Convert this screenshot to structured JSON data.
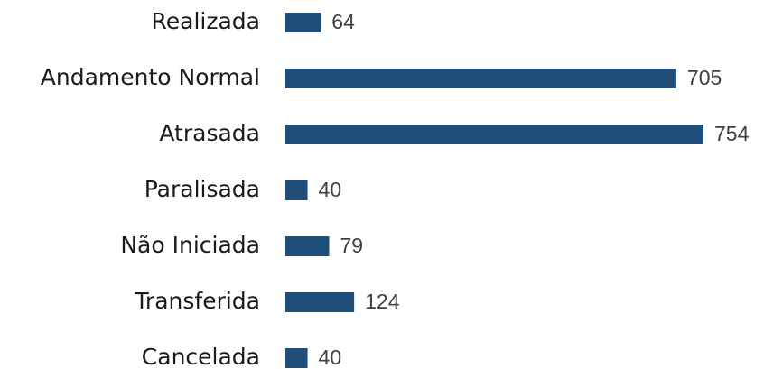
{
  "chart_data": {
    "type": "bar",
    "orientation": "horizontal",
    "categories": [
      "Realizada",
      "Andamento Normal",
      "Atrasada",
      "Paralisada",
      "Não Iniciada",
      "Transferida",
      "Cancelada"
    ],
    "values": [
      64,
      705,
      754,
      40,
      79,
      124,
      40
    ],
    "color": "#1f4e79"
  }
}
